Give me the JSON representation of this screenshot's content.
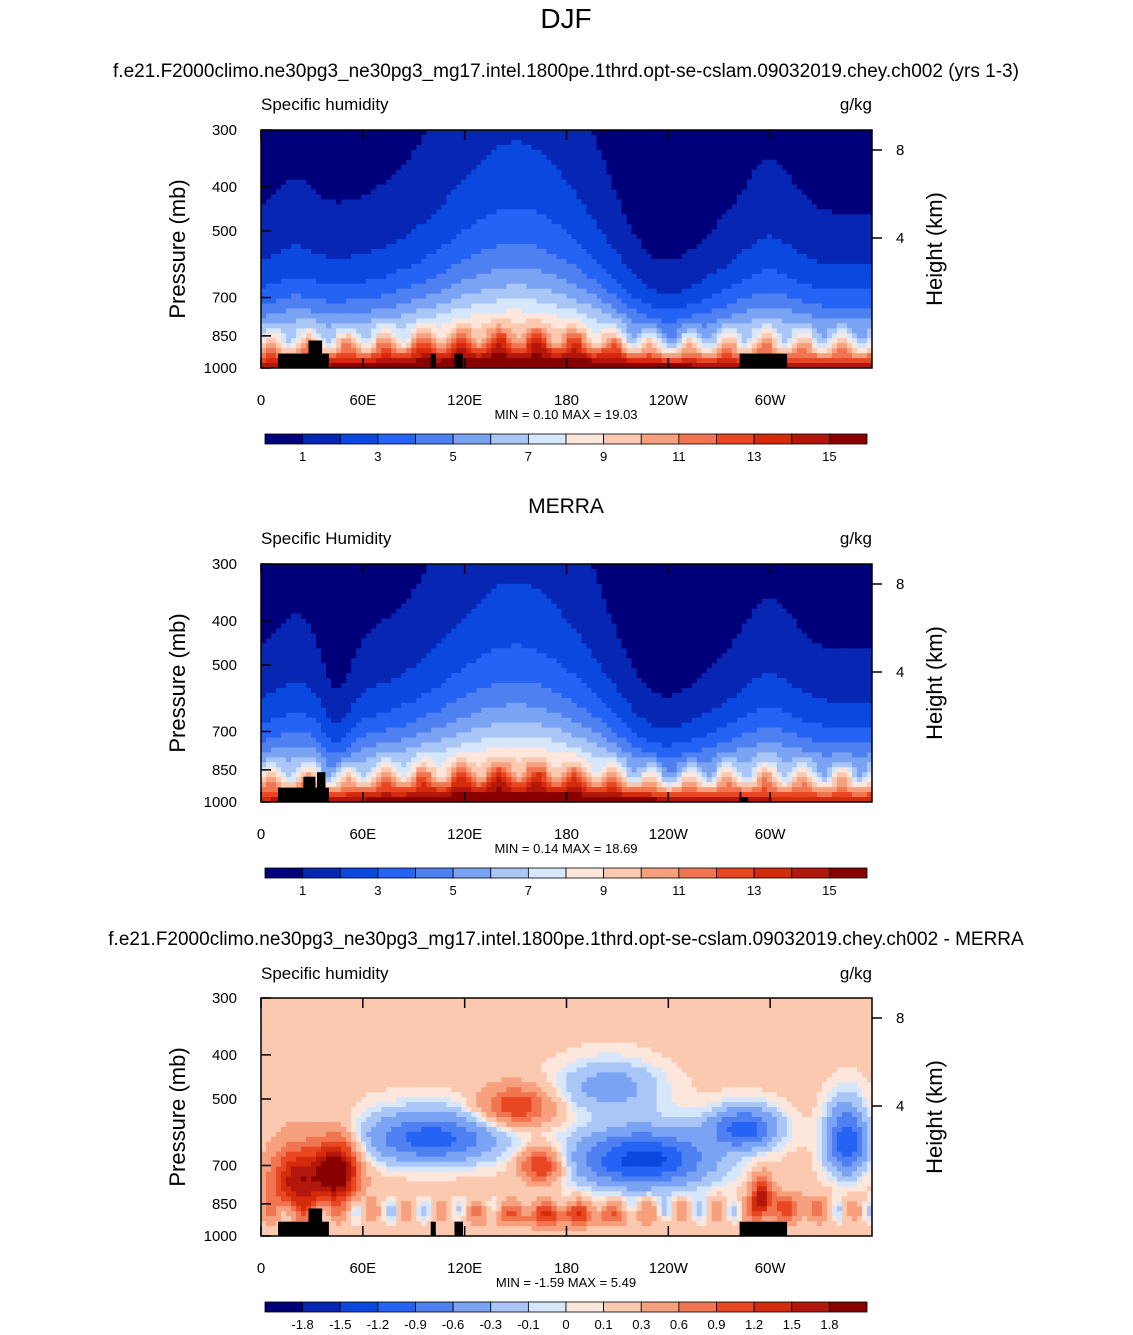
{
  "page_title": "DJF",
  "colors": {
    "abs_scale": [
      "#00007a",
      "#0626b3",
      "#0a48df",
      "#2563f5",
      "#4e80f2",
      "#7ba3f4",
      "#a9c6f7",
      "#d6e7fb",
      "#fde7dc",
      "#fbc8b0",
      "#f6a07e",
      "#f17550",
      "#e84722",
      "#d42b0d",
      "#b3160a",
      "#880000"
    ],
    "diff_scale": [
      "#00007a",
      "#0626b3",
      "#0a48df",
      "#2563f5",
      "#4e80f2",
      "#7ba3f4",
      "#a9c6f7",
      "#d6e7fb",
      "#fde7dc",
      "#fbc8b0",
      "#f6a07e",
      "#f17550",
      "#e84722",
      "#d42b0d",
      "#b3160a",
      "#880000"
    ],
    "topography": "#000000"
  },
  "chart_data": [
    {
      "type": "heatmap",
      "title": "f.e21.F2000climo.ne30pg3_ne30pg3_mg17.intel.1800pe.1thrd.opt-se-cslam.09032019.chey.ch002 (yrs 1-3)",
      "left_label": "Specific humidity",
      "right_label": "g/kg",
      "xlabel": "",
      "ylabel": "Pressure (mb)",
      "right_axis_label": "Height (km)",
      "x_ticks": [
        "0",
        "60E",
        "120E",
        "180",
        "120W",
        "60W"
      ],
      "y_ticks": [
        "300",
        "400",
        "500",
        "700",
        "850",
        "1000"
      ],
      "right_ticks": [
        "8",
        "4"
      ],
      "minmax": "MIN =   0.10  MAX =  19.03",
      "min": 0.1,
      "max": 19.03,
      "colorbar_levels": [
        0,
        1,
        2,
        3,
        4,
        5,
        6,
        7,
        8,
        9,
        10,
        11,
        12,
        13,
        14,
        15
      ],
      "colorbar_labels": [
        "1",
        "3",
        "5",
        "7",
        "9",
        "11",
        "13",
        "15"
      ],
      "surface_specific_humidity_gkg": [
        [
          0,
          16
        ],
        [
          10,
          16
        ],
        [
          20,
          15
        ],
        [
          30,
          15
        ],
        [
          40,
          14
        ],
        [
          60,
          15
        ],
        [
          90,
          16
        ],
        [
          120,
          17
        ],
        [
          150,
          17
        ],
        [
          180,
          16
        ],
        [
          210,
          15
        ],
        [
          240,
          14
        ],
        [
          270,
          15
        ],
        [
          285,
          16
        ],
        [
          300,
          16
        ],
        [
          330,
          15
        ],
        [
          359,
          14
        ]
      ]
    },
    {
      "type": "heatmap",
      "title": "MERRA",
      "left_label": "Specific Humidity",
      "right_label": "g/kg",
      "xlabel": "",
      "ylabel": "Pressure (mb)",
      "right_axis_label": "Height (km)",
      "x_ticks": [
        "0",
        "60E",
        "120E",
        "180",
        "120W",
        "60W"
      ],
      "y_ticks": [
        "300",
        "400",
        "500",
        "700",
        "850",
        "1000"
      ],
      "right_ticks": [
        "8",
        "4"
      ],
      "minmax": "MIN =   0.14  MAX =  18.69",
      "min": 0.14,
      "max": 18.69,
      "colorbar_levels": [
        0,
        1,
        2,
        3,
        4,
        5,
        6,
        7,
        8,
        9,
        10,
        11,
        12,
        13,
        14,
        15
      ],
      "colorbar_labels": [
        "1",
        "3",
        "5",
        "7",
        "9",
        "11",
        "13",
        "15"
      ]
    },
    {
      "type": "heatmap",
      "title": "f.e21.F2000climo.ne30pg3_ne30pg3_mg17.intel.1800pe.1thrd.opt-se-cslam.09032019.chey.ch002 - MERRA",
      "left_label": "Specific humidity",
      "right_label": "g/kg",
      "xlabel": "",
      "ylabel": "Pressure (mb)",
      "right_axis_label": "Height (km)",
      "x_ticks": [
        "0",
        "60E",
        "120E",
        "180",
        "120W",
        "60W"
      ],
      "y_ticks": [
        "300",
        "400",
        "500",
        "700",
        "850",
        "1000"
      ],
      "right_ticks": [
        "8",
        "4"
      ],
      "minmax": "MIN =  -1.59  MAX =   5.49",
      "min": -1.59,
      "max": 5.49,
      "colorbar_levels": [
        -2.1,
        -1.8,
        -1.5,
        -1.2,
        -0.9,
        -0.6,
        -0.3,
        -0.1,
        0,
        0.1,
        0.3,
        0.6,
        0.9,
        1.2,
        1.5,
        1.8
      ],
      "colorbar_labels": [
        "-1.8",
        "-1.5",
        "-1.2",
        "-0.9",
        "-0.6",
        "-0.3",
        "-0.1",
        "0",
        "0.1",
        "0.3",
        "0.6",
        "0.9",
        "1.2",
        "1.5",
        "1.8"
      ]
    }
  ]
}
